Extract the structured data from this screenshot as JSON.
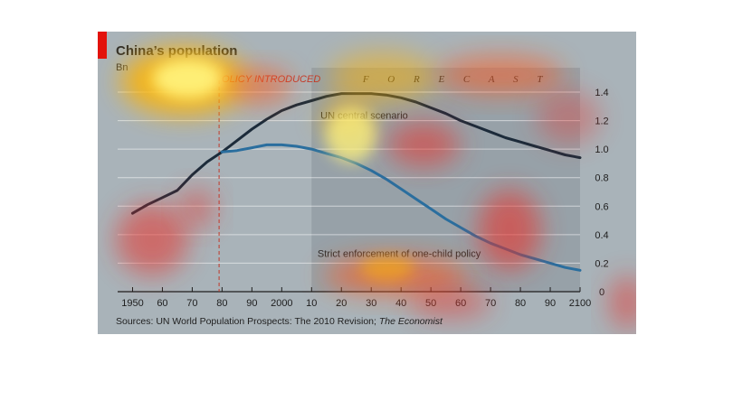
{
  "figure": {
    "title": "China’s population",
    "unit": "Bn",
    "source_prefix": "Sources: UN World Population Prospects: The 2010 Revision; ",
    "source_italic": "The Economist"
  },
  "chart_data": {
    "type": "line",
    "title": "China’s population",
    "ylabel": "Bn",
    "xlim": [
      1945,
      2100
    ],
    "ylim": [
      0,
      1.4
    ],
    "x_ticks": [
      1950,
      1960,
      1970,
      1980,
      1990,
      2000,
      2010,
      2020,
      2030,
      2040,
      2050,
      2060,
      2070,
      2080,
      2090,
      2100
    ],
    "x_tick_labels": [
      "1950",
      "60",
      "70",
      "80",
      "90",
      "2000",
      "10",
      "20",
      "30",
      "40",
      "50",
      "60",
      "70",
      "80",
      "90",
      "2100"
    ],
    "y_ticks": [
      0,
      0.2,
      0.4,
      0.6,
      0.8,
      1.0,
      1.2,
      1.4
    ],
    "y_tick_labels": [
      "0",
      "0.2",
      "0.4",
      "0.6",
      "0.8",
      "1.0",
      "1.2",
      "1.4"
    ],
    "y_axis_position": "right",
    "grid": "horizontal",
    "forecast_region": {
      "start": 2010,
      "end": 2100,
      "label": "F O R E C A S T"
    },
    "policy_line": {
      "x": 1979,
      "label": "ONE-CHILD POLICY INTRODUCED",
      "visible_label": "OLICY INTRODUCED"
    },
    "series": [
      {
        "name": "UN central scenario",
        "color": "#1c2b3a",
        "x": [
          1950,
          1955,
          1960,
          1965,
          1970,
          1975,
          1980,
          1985,
          1990,
          1995,
          2000,
          2005,
          2010,
          2015,
          2020,
          2025,
          2030,
          2035,
          2040,
          2045,
          2050,
          2055,
          2060,
          2065,
          2070,
          2075,
          2080,
          2085,
          2090,
          2095,
          2100
        ],
        "values": [
          0.55,
          0.61,
          0.66,
          0.71,
          0.82,
          0.91,
          0.98,
          1.06,
          1.14,
          1.21,
          1.27,
          1.31,
          1.34,
          1.37,
          1.39,
          1.39,
          1.39,
          1.38,
          1.36,
          1.33,
          1.29,
          1.25,
          1.2,
          1.16,
          1.12,
          1.08,
          1.05,
          1.02,
          0.99,
          0.96,
          0.94
        ]
      },
      {
        "name": "Strict enforcement of one-child policy",
        "color": "#2a6e9e",
        "x": [
          1980,
          1985,
          1990,
          1995,
          2000,
          2005,
          2010,
          2015,
          2020,
          2025,
          2030,
          2035,
          2040,
          2045,
          2050,
          2055,
          2060,
          2065,
          2070,
          2075,
          2080,
          2085,
          2090,
          2095,
          2100
        ],
        "values": [
          0.98,
          0.99,
          1.01,
          1.03,
          1.03,
          1.02,
          1.0,
          0.97,
          0.94,
          0.9,
          0.85,
          0.79,
          0.72,
          0.65,
          0.58,
          0.51,
          0.45,
          0.39,
          0.34,
          0.3,
          0.26,
          0.23,
          0.2,
          0.17,
          0.15
        ]
      }
    ],
    "annotations": [
      {
        "text": "UN central scenario",
        "x": 2013,
        "y": 1.24
      },
      {
        "text": "Strict enforcement of one-child policy",
        "x": 2012,
        "y": 0.27
      }
    ]
  },
  "heatmap_overlay": {
    "colors": {
      "hot": "#fff27a",
      "warm": "#ffb300",
      "mid": "#ff5a1f",
      "cool": "#e8322a"
    }
  }
}
